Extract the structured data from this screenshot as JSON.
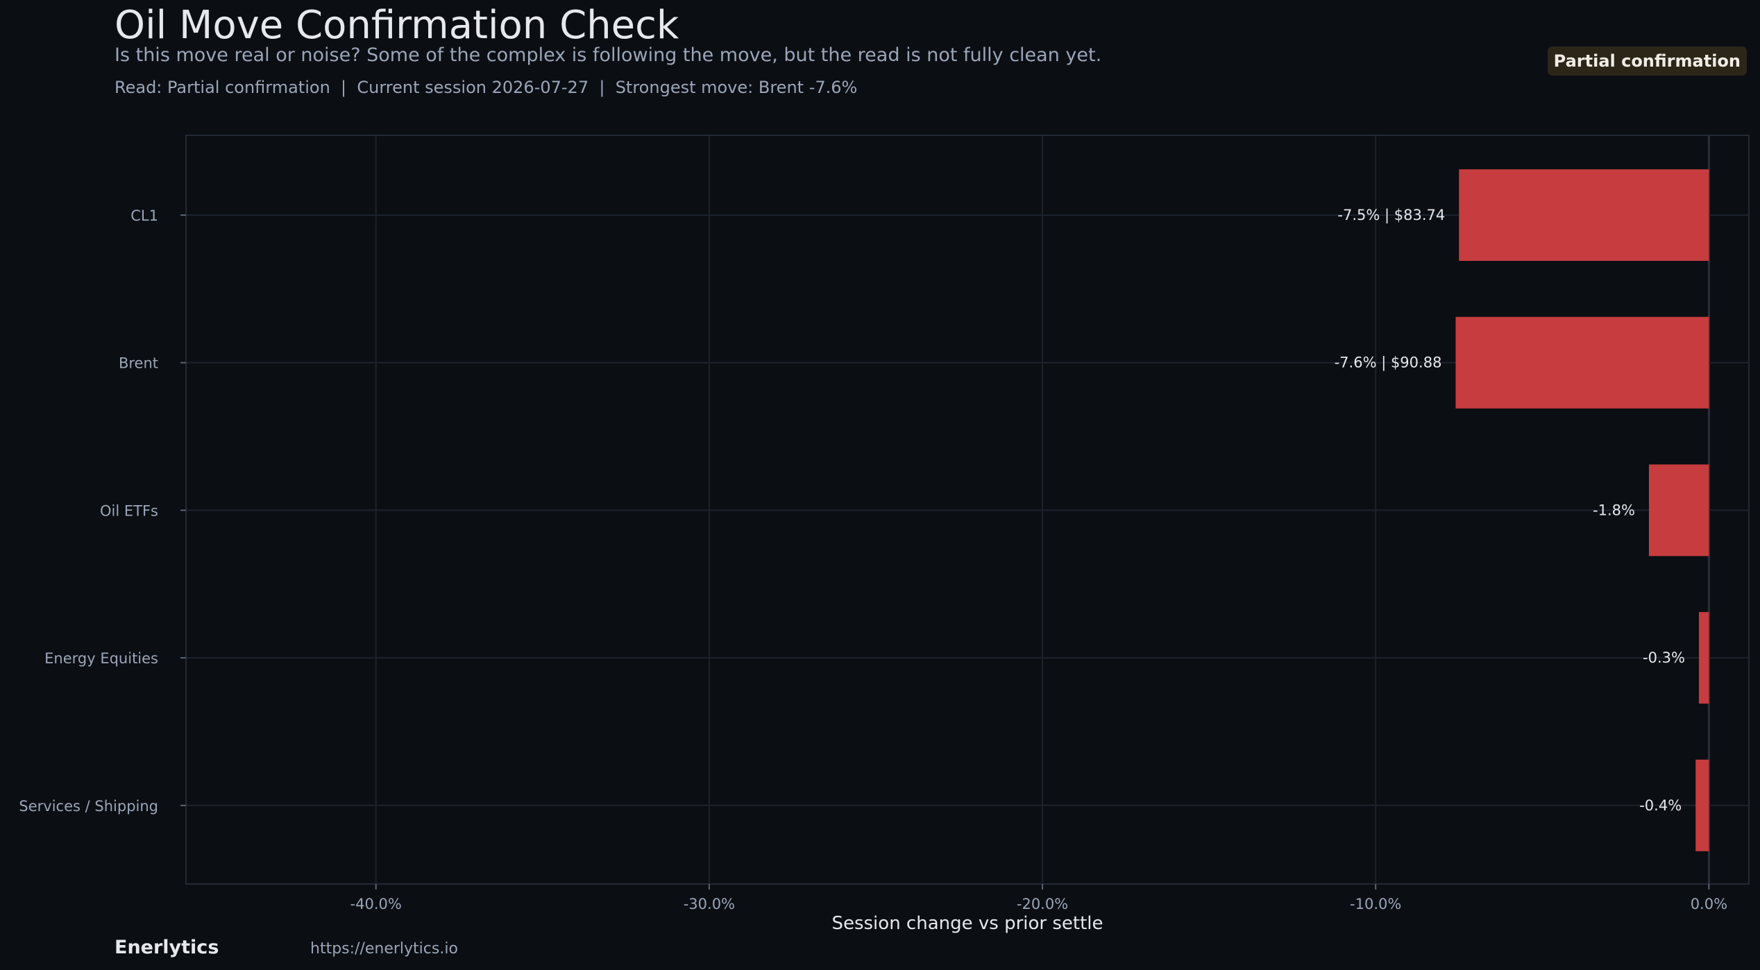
{
  "header": {
    "title": "Oil Move Confirmation Check",
    "subtitle": "Is this move real or noise? Some of the complex is following the move, but the read is not fully clean yet.",
    "read_line": "Read: Partial confirmation  |  Current session 2026-07-27  |  Strongest move: Brent -7.6%",
    "badge": "Partial confirmation"
  },
  "footer": {
    "brand": "Enerlytics",
    "url": "https://enerlytics.io"
  },
  "colors": {
    "background": "#0b0e13",
    "bar": "#c63c3f",
    "grid": "#1d232d",
    "axis_text": "#9aa6b8",
    "label_text": "#e6e8eb",
    "badge_bg": "#2c2619"
  },
  "chart_data": {
    "type": "bar",
    "orientation": "horizontal",
    "categories": [
      "CL1",
      "Brent",
      "Oil ETFs",
      "Energy Equities",
      "Services / Shipping"
    ],
    "values": [
      -7.5,
      -7.6,
      -1.8,
      -0.3,
      -0.4
    ],
    "data_labels": [
      "-7.5% | $83.74",
      "-7.6% | $90.88",
      "-1.8%",
      "-0.3%",
      "-0.4%"
    ],
    "xlabel": "Session change vs prior settle",
    "xlim": [
      -45.7,
      1.2
    ],
    "xticks": [
      -40,
      -30,
      -20,
      -10,
      0
    ],
    "xtick_labels": [
      "-40.0%",
      "-30.0%",
      "-20.0%",
      "-10.0%",
      "0.0%"
    ],
    "grid": true
  }
}
